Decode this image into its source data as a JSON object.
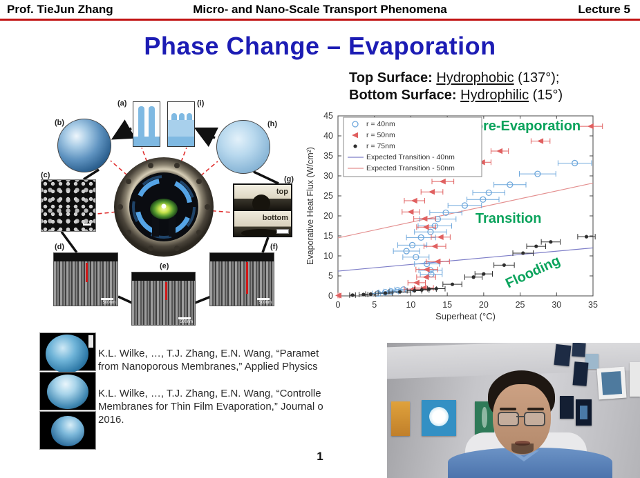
{
  "header": {
    "left": "Prof. TieJun Zhang",
    "center": "Micro- and Nano-Scale Transport Phenomena",
    "right": "Lecture 5"
  },
  "title": "Phase Change – Evaporation",
  "surface_note": {
    "top_label": "Top Surface:",
    "top_term": "Hydrophobic",
    "top_suffix": " (137°);",
    "bottom_label": "Bottom Surface:",
    "bottom_term": "Hydrophilic",
    "bottom_suffix": " (15°)"
  },
  "figure": {
    "panel_labels": [
      "(a)",
      "(b)",
      "(c)",
      "(d)",
      "(e)",
      "(f)",
      "(g)",
      "(h)",
      "(i)"
    ],
    "g_top_label": "top",
    "g_bottom_label": "bottom",
    "scale_label": "500nm"
  },
  "citations": [
    {
      "lines": [
        "K.L. Wilke, …, T.J. Zhang, E.N. Wang, “Paramet",
        "from Nanoporous Membranes,” Applied Physics"
      ]
    },
    {
      "lines": [
        "K.L. Wilke, …, T.J. Zhang, E.N. Wang, “Controlle",
        "Membranes for Thin Film Evaporation,” Journal o",
        "2016."
      ]
    }
  ],
  "page_number": "1",
  "colors": {
    "header_rule_red": "#c11212",
    "title_blue": "#1c1cb4",
    "region_green": "#0aa35c",
    "series_40nm": "#6fa8dc",
    "series_50nm": "#e06060",
    "series_75nm": "#2e2e2e",
    "line_40nm": "#7e7ec8",
    "line_50nm": "#e49090"
  },
  "chart_data": {
    "type": "scatter",
    "title": "",
    "xlabel": "Superheat (°C)",
    "ylabel": "Evaporative Heat Flux (W/cm²)",
    "xlim": [
      0,
      35
    ],
    "ylim": [
      0,
      45
    ],
    "xticks": [
      0,
      5,
      10,
      15,
      20,
      25,
      30,
      35
    ],
    "yticks": [
      0,
      5,
      10,
      15,
      20,
      25,
      30,
      35,
      40,
      45
    ],
    "grid": false,
    "legend_position": "top-left",
    "series": [
      {
        "name": "r = 40nm",
        "marker": "circle-open",
        "color": "#6fa8dc",
        "points": [
          [
            32.5,
            33.2,
            2.3
          ],
          [
            27.4,
            30.5,
            2.5
          ],
          [
            23.6,
            27.8,
            2.2
          ],
          [
            20.7,
            25.8,
            2.2
          ],
          [
            19.9,
            24.1,
            2.2
          ],
          [
            17.4,
            22.6,
            2.3
          ],
          [
            14.8,
            20.8,
            2.2
          ],
          [
            13.7,
            19.2,
            2.5
          ],
          [
            13.3,
            17.5,
            2.3
          ],
          [
            12.7,
            16,
            2.2
          ],
          [
            11.4,
            14.6,
            2
          ],
          [
            10.2,
            12.7,
            2
          ],
          [
            9.4,
            11.2,
            1.8
          ],
          [
            10.7,
            9.7,
            1.8
          ],
          [
            12.2,
            8,
            1.7
          ],
          [
            12.7,
            6.4,
            1.6
          ],
          [
            12.8,
            5.4,
            1.5
          ],
          [
            9,
            1.6,
            1.2
          ],
          [
            8.2,
            1.4,
            1.1
          ],
          [
            7.3,
            1.1,
            1
          ],
          [
            6.5,
            0.9,
            0.9
          ],
          [
            5.5,
            0.6,
            0.8
          ]
        ]
      },
      {
        "name": "r = 50nm",
        "marker": "triangle-left",
        "color": "#e06060",
        "points": [
          [
            34.7,
            42.4,
            1.6
          ],
          [
            27.8,
            38.7,
            1.3
          ],
          [
            22.2,
            36.2,
            1.2
          ],
          [
            19.8,
            33.4,
            1.2
          ],
          [
            17.6,
            31.1,
            1.2
          ],
          [
            14.4,
            28.6,
            1.5
          ],
          [
            12.9,
            26,
            1.5
          ],
          [
            10.5,
            23.8,
            1.4
          ],
          [
            10,
            21,
            1.2
          ],
          [
            11.9,
            19.3,
            1.5
          ],
          [
            12.1,
            17.2,
            1.3
          ],
          [
            14.1,
            14.7,
            1.3
          ],
          [
            13.3,
            12.4,
            1.5
          ],
          [
            13.7,
            8.6,
            1.6
          ],
          [
            12.2,
            6.6,
            1.5
          ],
          [
            12.1,
            4.7,
            1.3
          ],
          [
            10.8,
            3.3,
            1.2
          ],
          [
            11.8,
            2,
            1.3
          ],
          [
            10.3,
            1.7,
            1.2
          ],
          [
            0.1,
            0.1,
            0.1
          ]
        ]
      },
      {
        "name": "r = 75nm",
        "marker": "dot",
        "color": "#2e2e2e",
        "points": [
          [
            34.1,
            14.8,
            1.2
          ],
          [
            29.2,
            13.5,
            1.3
          ],
          [
            27.2,
            12.4,
            1.3
          ],
          [
            25.4,
            10.7,
            1.4
          ],
          [
            22.8,
            7.7,
            1.4
          ],
          [
            20,
            5.5,
            1.2
          ],
          [
            18.6,
            4.7,
            1.2
          ],
          [
            15.7,
            2.9,
            1.3
          ],
          [
            13.5,
            1.8,
            1.2
          ],
          [
            12.5,
            1.7,
            1
          ],
          [
            11.5,
            1.5,
            1
          ],
          [
            10.5,
            1.3,
            1
          ],
          [
            8.5,
            1,
            1.5
          ],
          [
            6.5,
            0.7,
            1
          ],
          [
            4.5,
            0.45,
            0.7
          ],
          [
            3.5,
            0.35,
            0.6
          ],
          [
            2,
            0.2,
            0.4
          ]
        ]
      }
    ],
    "lines": [
      {
        "name": "Expected Transition - 40nm",
        "color": "#7e7ec8",
        "from": [
          0,
          6.2
        ],
        "to": [
          35,
          12
        ]
      },
      {
        "name": "Expected Transition - 50nm",
        "color": "#e49090",
        "from": [
          0,
          14.5
        ],
        "to": [
          35,
          28.2
        ]
      }
    ],
    "annotations": [
      {
        "text": "Pore-Evaporation",
        "x": 25.4,
        "y": 41.4,
        "rotate": 0,
        "color": "#0aa35c"
      },
      {
        "text": "Transition",
        "x": 23.4,
        "y": 18.3,
        "rotate": 0,
        "color": "#0aa35c"
      },
      {
        "text": "Flooding",
        "x": 27,
        "y": 5,
        "rotate": -25,
        "color": "#0aa35c"
      }
    ]
  }
}
